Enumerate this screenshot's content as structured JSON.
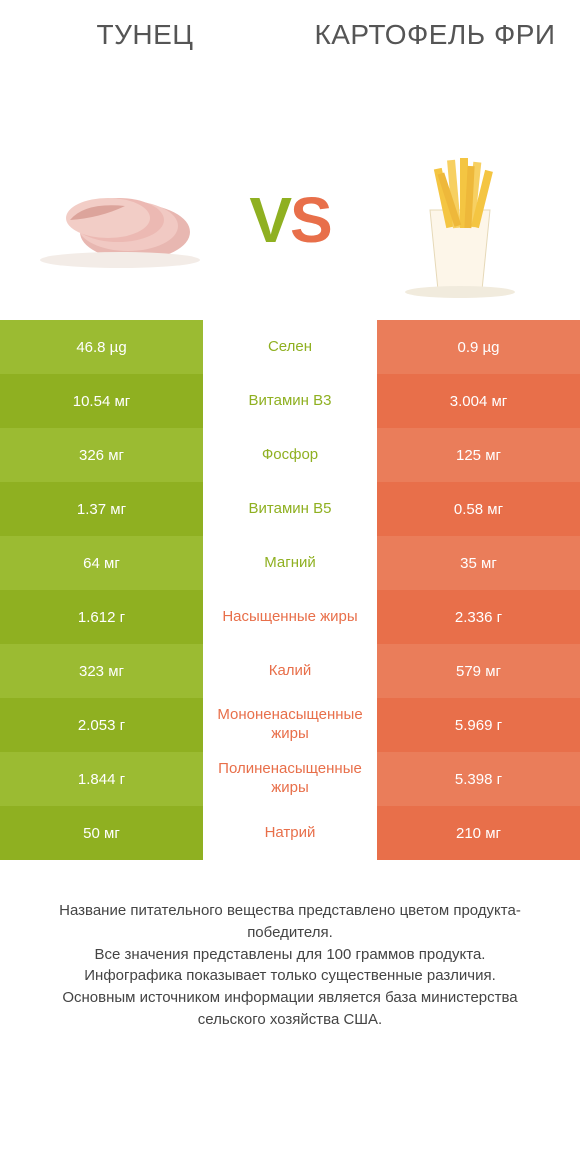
{
  "colors": {
    "green_a": "#9bbb32",
    "green_b": "#8fb021",
    "orange_a": "#ea7d5a",
    "orange_b": "#e86f4a",
    "text_footer": "#444444",
    "text_header": "#555555",
    "background": "#ffffff"
  },
  "header": {
    "left": "ТУНЕЦ",
    "right": "КАРТОФЕЛЬ ФРИ"
  },
  "vs": {
    "v": "V",
    "s": "S"
  },
  "rows": [
    {
      "left": "46.8 µg",
      "mid": "Селен",
      "right": "0.9 µg",
      "winner": "left"
    },
    {
      "left": "10.54 мг",
      "mid": "Витамин B3",
      "right": "3.004 мг",
      "winner": "left"
    },
    {
      "left": "326 мг",
      "mid": "Фосфор",
      "right": "125 мг",
      "winner": "left"
    },
    {
      "left": "1.37 мг",
      "mid": "Витамин B5",
      "right": "0.58 мг",
      "winner": "left"
    },
    {
      "left": "64 мг",
      "mid": "Магний",
      "right": "35 мг",
      "winner": "left"
    },
    {
      "left": "1.612 г",
      "mid": "Насыщенные жиры",
      "right": "2.336 г",
      "winner": "right"
    },
    {
      "left": "323 мг",
      "mid": "Калий",
      "right": "579 мг",
      "winner": "right"
    },
    {
      "left": "2.053 г",
      "mid": "Мононенасыщенные жиры",
      "right": "5.969 г",
      "winner": "right"
    },
    {
      "left": "1.844 г",
      "mid": "Полиненасыщенные жиры",
      "right": "5.398 г",
      "winner": "right"
    },
    {
      "left": "50 мг",
      "mid": "Натрий",
      "right": "210 мг",
      "winner": "right"
    }
  ],
  "footer": {
    "l1": "Название питательного вещества представлено цветом продукта-победителя.",
    "l2": "Все значения представлены для 100 граммов продукта.",
    "l3": "Инфографика показывает только существенные различия.",
    "l4": "Основным источником информации является база министерства сельского хозяйства США."
  }
}
